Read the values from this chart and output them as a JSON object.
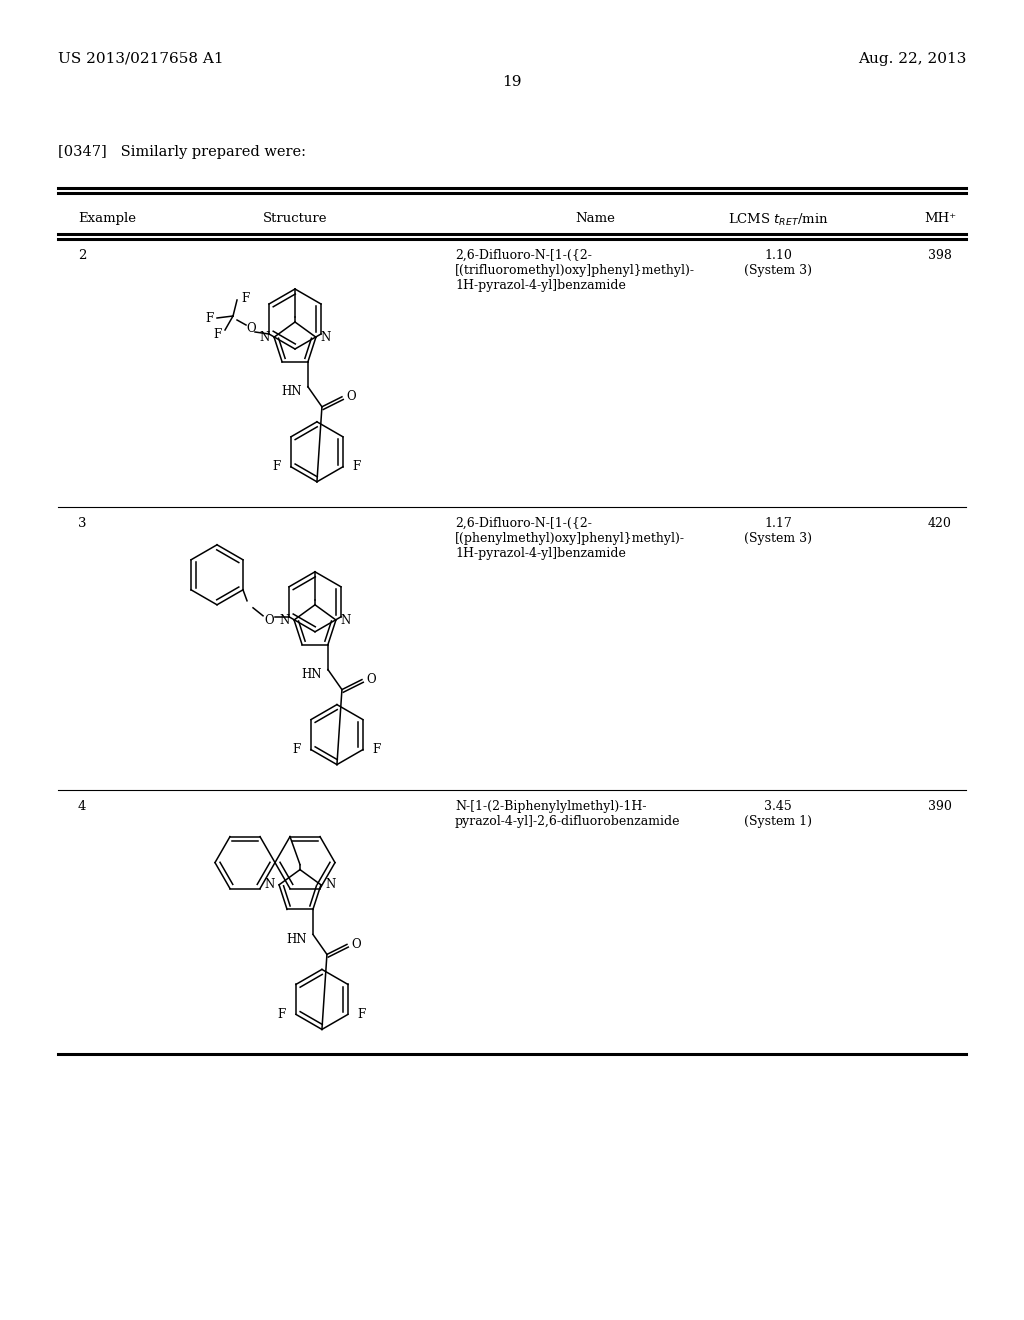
{
  "header_left": "US 2013/0217658 A1",
  "header_right": "Aug. 22, 2013",
  "page_number": "19",
  "paragraph": "[0347]   Similarly prepared were:",
  "bg_color": "#ffffff",
  "row1_example": "2",
  "row1_name_l1": "2,6-Difluoro-N-[1-({2-",
  "row1_name_l2": "[(trifluoromethyl)oxy]phenyl}methyl)-",
  "row1_name_l3": "1H-pyrazol-4-yl]benzamide",
  "row1_lcms": "1.10",
  "row1_sys": "(System 3)",
  "row1_mh": "398",
  "row2_example": "3",
  "row2_name_l1": "2,6-Difluoro-N-[1-({2-",
  "row2_name_l2": "[(phenylmethyl)oxy]phenyl}methyl)-",
  "row2_name_l3": "1H-pyrazol-4-yl]benzamide",
  "row2_lcms": "1.17",
  "row2_sys": "(System 3)",
  "row2_mh": "420",
  "row3_example": "4",
  "row3_name_l1": "N-[1-(2-Biphenylylmethyl)-1H-",
  "row3_name_l2": "pyrazol-4-yl]-2,6-difluorobenzamide",
  "row3_lcms": "3.45",
  "row3_sys": "(System 1)",
  "row3_mh": "390"
}
